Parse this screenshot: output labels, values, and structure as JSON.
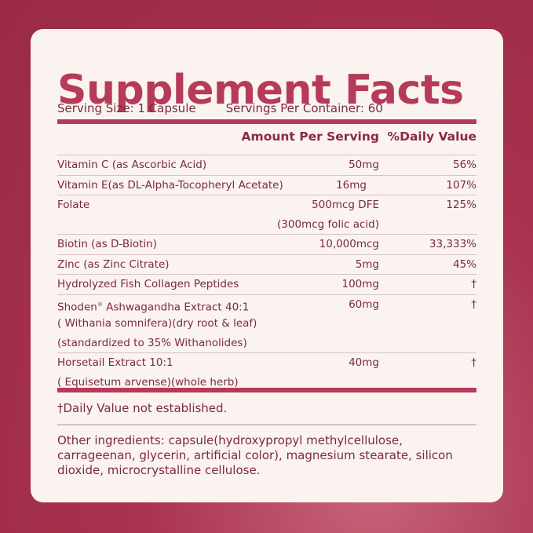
{
  "title": "Supplement Facts",
  "serving_size": "Serving Size: 1 Capsule",
  "servings_per_container": "Servings Per Container: 60",
  "headers": {
    "amount": "Amount Per Serving",
    "daily_value": "%Daily Value"
  },
  "rows": [
    {
      "lines": [
        "Vitamin C (as Ascorbic Acid)"
      ],
      "amount": "50mg",
      "dv": "56%"
    },
    {
      "lines": [
        "Vitamin E(as DL-Alpha-Tocopheryl Acetate)"
      ],
      "amount": "16mg",
      "dv": "107%"
    },
    {
      "lines": [
        "Folate",
        ""
      ],
      "amount": "500mcg DFE",
      "amount2": "(300mcg folic acid)",
      "dv": "125%"
    },
    {
      "lines": [
        "Biotin (as D-Biotin)"
      ],
      "amount": "10,000mcg",
      "dv": "33,333%"
    },
    {
      "lines": [
        "Zinc (as Zinc Citrate)"
      ],
      "amount": "5mg",
      "dv": "45%"
    },
    {
      "lines": [
        "Hydrolyzed  Fish Collagen Peptides"
      ],
      "amount": "100mg",
      "dv": "†"
    },
    {
      "lines": [
        "Shoden",
        "( Withania somnifera)(dry root & leaf)",
        "(standardized to 35% Withanolides)"
      ],
      "name_suffix": " Ashwagandha Extract 40:1",
      "registered": "®",
      "amount": "60mg",
      "dv": "†"
    },
    {
      "lines": [
        "Horsetail Extract 10:1",
        "( Equisetum arvense)(whole herb)"
      ],
      "amount": "40mg",
      "dv": "†"
    }
  ],
  "footnote": "†Daily Value not established.",
  "other_ingredients": "Other ingredients: capsule(hydroxypropyl methylcellulose, carrageenan, glycerin, artificial color), magnesium stearate, silicon dioxide, microcrystalline cellulose.",
  "colors": {
    "accent": "#b63a5a",
    "text": "#7a2a40",
    "card": "#fbf3f0",
    "background": "#a8324f"
  }
}
